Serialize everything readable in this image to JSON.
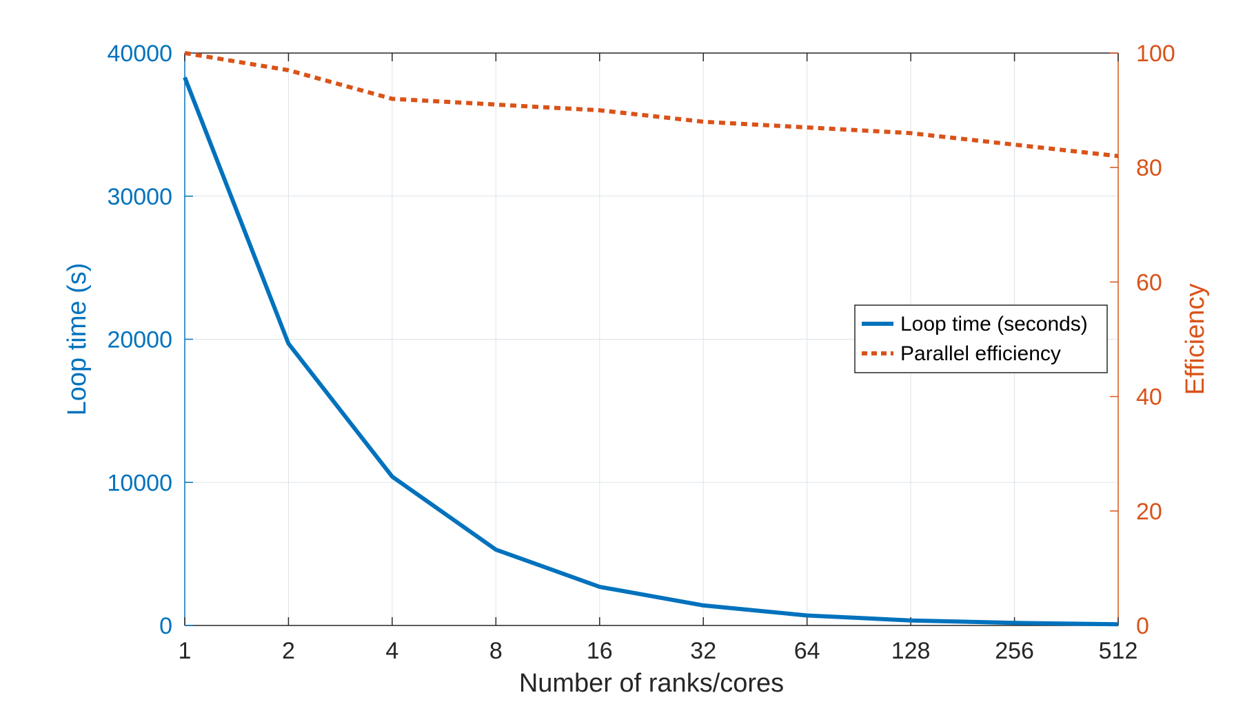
{
  "chart_data": {
    "type": "line",
    "title": "",
    "xlabel": "Number of ranks/cores",
    "ylabel_left": "Loop time (s)",
    "ylabel_right": "Efficiency",
    "x_scale": "log2",
    "x": [
      1,
      2,
      4,
      8,
      16,
      32,
      64,
      128,
      256,
      512
    ],
    "x_tick_labels": [
      "1",
      "2",
      "4",
      "8",
      "16",
      "32",
      "64",
      "128",
      "256",
      "512"
    ],
    "ylim_left": [
      0,
      40000
    ],
    "ylim_right": [
      0,
      100
    ],
    "y_left_tick_values": [
      0,
      10000,
      20000,
      30000,
      40000
    ],
    "y_left_tick_labels": [
      "0",
      "10000",
      "20000",
      "30000",
      "40000"
    ],
    "y_right_tick_values": [
      0,
      20,
      40,
      60,
      80,
      100
    ],
    "y_right_tick_labels": [
      "0",
      "20",
      "40",
      "60",
      "80",
      "100"
    ],
    "grid": true,
    "legend_position": "middle-right",
    "series": [
      {
        "name": "Loop time (seconds)",
        "axis": "left",
        "style": "solid",
        "color": "#0072BD",
        "values": [
          38300,
          19700,
          10400,
          5300,
          2700,
          1400,
          700,
          350,
          180,
          80
        ]
      },
      {
        "name": "Parallel efficiency",
        "axis": "right",
        "style": "dotted",
        "color": "#D95319",
        "values": [
          100,
          97,
          92,
          91,
          90,
          88,
          87,
          86,
          84,
          82
        ]
      }
    ]
  },
  "colors": {
    "left_axis": "#0072BD",
    "right_axis": "#D95319",
    "grid": "#DCE3EA",
    "axis_box": "#262626"
  }
}
